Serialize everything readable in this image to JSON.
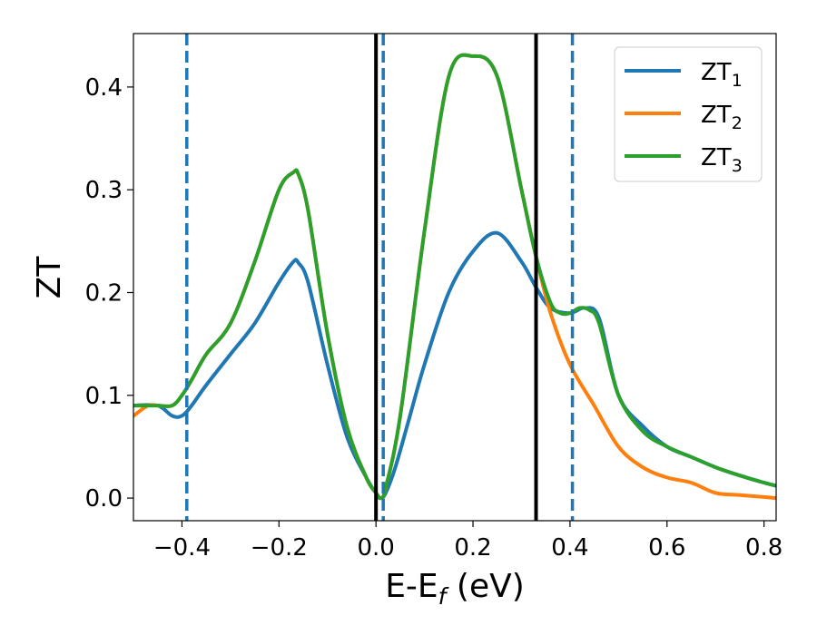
{
  "chart_data": {
    "type": "line",
    "title": "",
    "xlabel": "E-E",
    "xlabel_sub": "f",
    "xlabel_suffix": " (eV)",
    "ylabel": "ZT",
    "xlim": [
      -0.5,
      0.825
    ],
    "ylim": [
      -0.022,
      0.452
    ],
    "xticks": [
      -0.4,
      -0.2,
      0.0,
      0.2,
      0.4,
      0.6,
      0.8
    ],
    "xtick_labels": [
      "−0.4",
      "−0.2",
      "0.0",
      "0.2",
      "0.4",
      "0.6",
      "0.8"
    ],
    "yticks": [
      0.0,
      0.1,
      0.2,
      0.3,
      0.4
    ],
    "ytick_labels": [
      "0.0",
      "0.1",
      "0.2",
      "0.3",
      "0.4"
    ],
    "grid": false,
    "legend_position": "top-right",
    "series": [
      {
        "name": "ZT",
        "name_sub": "1",
        "color": "#1f77b4",
        "x": [
          -0.5,
          -0.45,
          -0.42,
          -0.4,
          -0.38,
          -0.35,
          -0.3,
          -0.25,
          -0.2,
          -0.17,
          -0.16,
          -0.14,
          -0.1,
          -0.06,
          -0.02,
          0.0,
          0.01,
          0.02,
          0.04,
          0.07,
          0.1,
          0.15,
          0.2,
          0.25,
          0.3,
          0.33,
          0.36,
          0.4,
          0.43,
          0.46,
          0.5,
          0.55,
          0.6,
          0.65,
          0.7,
          0.75,
          0.8,
          0.825
        ],
        "y": [
          0.09,
          0.09,
          0.08,
          0.08,
          0.09,
          0.11,
          0.14,
          0.17,
          0.21,
          0.23,
          0.229,
          0.21,
          0.13,
          0.06,
          0.02,
          0.005,
          0.0,
          0.005,
          0.03,
          0.08,
          0.13,
          0.2,
          0.24,
          0.258,
          0.23,
          0.205,
          0.185,
          0.18,
          0.185,
          0.175,
          0.1,
          0.07,
          0.05,
          0.04,
          0.03,
          0.022,
          0.015,
          0.012
        ]
      },
      {
        "name": "ZT",
        "name_sub": "2",
        "color": "#ff7f0e",
        "x": [
          -0.5,
          -0.47,
          -0.45,
          -0.42,
          -0.4,
          -0.38,
          -0.35,
          -0.3,
          -0.25,
          -0.2,
          -0.17,
          -0.16,
          -0.14,
          -0.1,
          -0.06,
          -0.02,
          0.0,
          0.01,
          0.02,
          0.05,
          0.1,
          0.15,
          0.2,
          0.25,
          0.3,
          0.33,
          0.36,
          0.4,
          0.45,
          0.5,
          0.55,
          0.6,
          0.65,
          0.7,
          0.75,
          0.8,
          0.825
        ],
        "y": [
          0.08,
          0.09,
          0.09,
          0.09,
          0.1,
          0.115,
          0.14,
          0.17,
          0.23,
          0.3,
          0.317,
          0.315,
          0.28,
          0.16,
          0.07,
          0.02,
          0.005,
          0.0,
          0.01,
          0.08,
          0.26,
          0.41,
          0.43,
          0.41,
          0.3,
          0.235,
          0.18,
          0.13,
          0.09,
          0.05,
          0.03,
          0.02,
          0.015,
          0.005,
          0.003,
          0.001,
          0.0
        ]
      },
      {
        "name": "ZT",
        "name_sub": "3",
        "color": "#2ca02c",
        "x": [
          -0.5,
          -0.47,
          -0.45,
          -0.42,
          -0.4,
          -0.38,
          -0.35,
          -0.3,
          -0.25,
          -0.2,
          -0.17,
          -0.16,
          -0.14,
          -0.1,
          -0.06,
          -0.02,
          0.0,
          0.01,
          0.02,
          0.05,
          0.1,
          0.15,
          0.2,
          0.25,
          0.3,
          0.33,
          0.36,
          0.38,
          0.4,
          0.42,
          0.44,
          0.46,
          0.5,
          0.55,
          0.6,
          0.65,
          0.7,
          0.75,
          0.8,
          0.825
        ],
        "y": [
          0.09,
          0.09,
          0.09,
          0.09,
          0.1,
          0.115,
          0.14,
          0.17,
          0.23,
          0.3,
          0.317,
          0.315,
          0.28,
          0.16,
          0.07,
          0.02,
          0.005,
          0.0,
          0.01,
          0.08,
          0.26,
          0.41,
          0.43,
          0.41,
          0.3,
          0.235,
          0.19,
          0.18,
          0.18,
          0.185,
          0.183,
          0.17,
          0.1,
          0.065,
          0.05,
          0.04,
          0.03,
          0.022,
          0.015,
          0.012
        ]
      }
    ],
    "vlines": [
      {
        "x": 0.0,
        "style": "solid",
        "color": "#000000"
      },
      {
        "x": 0.33,
        "style": "solid",
        "color": "#000000"
      },
      {
        "x": -0.39,
        "style": "dashed",
        "color": "#1f77b4"
      },
      {
        "x": 0.015,
        "style": "dashed",
        "color": "#1f77b4"
      },
      {
        "x": 0.405,
        "style": "dashed",
        "color": "#1f77b4"
      }
    ]
  }
}
